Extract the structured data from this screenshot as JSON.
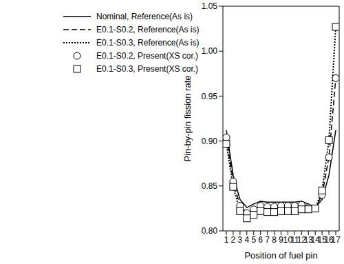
{
  "chart_data": {
    "type": "line",
    "x_label": "Position of fuel pin",
    "y_label": "Pin-by-pin fission rate",
    "x": [
      1,
      2,
      3,
      4,
      5,
      6,
      7,
      8,
      9,
      10,
      11,
      12,
      13,
      14,
      15,
      16,
      17
    ],
    "xlim": [
      0.5,
      17.5
    ],
    "xticks": [
      1,
      2,
      3,
      4,
      5,
      6,
      7,
      8,
      9,
      10,
      11,
      12,
      13,
      14,
      15,
      16,
      17
    ],
    "ylim": [
      0.8,
      1.05
    ],
    "yticks": [
      {
        "value": 0.8,
        "label": "0.80"
      },
      {
        "value": 0.85,
        "label": "0.85"
      },
      {
        "value": 0.9,
        "label": "0.90"
      },
      {
        "value": 0.95,
        "label": "0.95"
      },
      {
        "value": 1.0,
        "label": "1.00"
      },
      {
        "value": 1.05,
        "label": "1.05"
      }
    ],
    "grid": false,
    "legend": "upper left",
    "series": [
      {
        "name": "Nominal, Reference(As is)",
        "color": "#000000",
        "line_style": "solid",
        "marker": "none",
        "values": [
          0.912,
          0.862,
          0.835,
          0.826,
          0.83,
          0.833,
          0.832,
          0.832,
          0.832,
          0.832,
          0.832,
          0.833,
          0.83,
          0.826,
          0.835,
          0.862,
          0.912
        ]
      },
      {
        "name": "E0.1-S0.2, Reference(As is)",
        "color": "#000000",
        "line_style": "dashed",
        "marker": "none",
        "values": [
          0.904,
          0.855,
          0.828,
          0.82,
          0.824,
          0.828,
          0.827,
          0.827,
          0.828,
          0.828,
          0.828,
          0.829,
          0.826,
          0.825,
          0.84,
          0.882,
          0.97
        ]
      },
      {
        "name": "E0.1-S0.3, Reference(As is)",
        "color": "#000000",
        "line_style": "dotted",
        "marker": "none",
        "values": [
          0.897,
          0.849,
          0.822,
          0.814,
          0.818,
          0.822,
          0.821,
          0.821,
          0.822,
          0.822,
          0.822,
          0.824,
          0.824,
          0.825,
          0.845,
          0.901,
          1.027
        ]
      },
      {
        "name": "E0.1-S0.2, Present(XS cor.)",
        "color": "#000000",
        "line_style": "none",
        "marker": "circle",
        "values": [
          0.904,
          0.855,
          0.828,
          0.82,
          0.824,
          0.828,
          0.827,
          0.827,
          0.828,
          0.828,
          0.828,
          0.829,
          0.826,
          0.825,
          0.84,
          0.882,
          0.97
        ]
      },
      {
        "name": "E0.1-S0.3, Present(XS cor.)",
        "color": "#000000",
        "line_style": "none",
        "marker": "square",
        "values": [
          0.897,
          0.849,
          0.822,
          0.814,
          0.818,
          0.822,
          0.821,
          0.821,
          0.822,
          0.822,
          0.822,
          0.824,
          0.824,
          0.825,
          0.845,
          0.901,
          1.027
        ]
      }
    ]
  }
}
